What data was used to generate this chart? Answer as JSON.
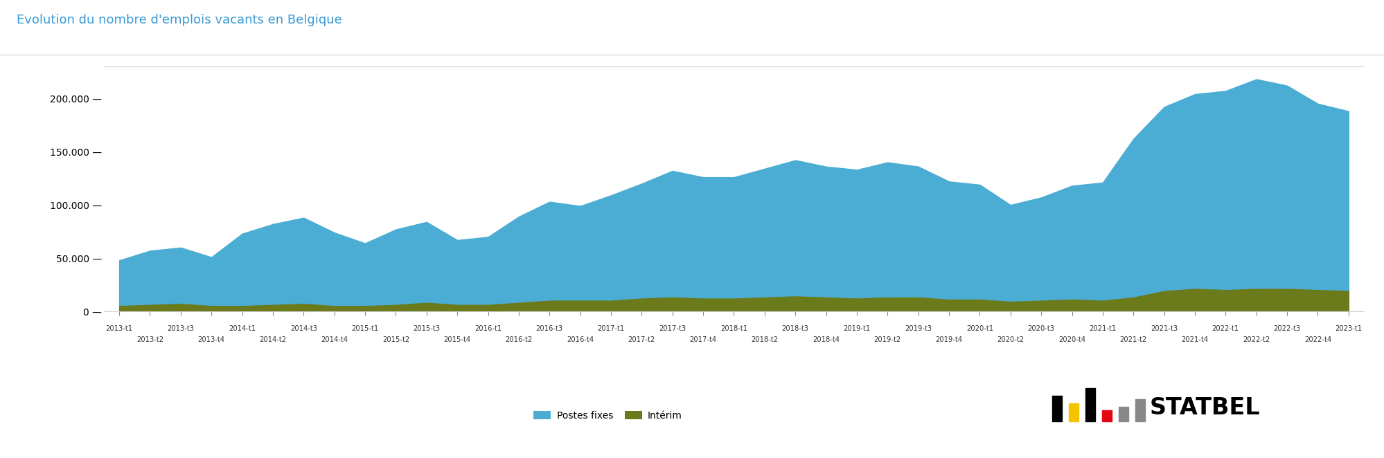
{
  "title": "Evolution du nombre d'emplois vacants en Belgique",
  "title_color": "#3a9ad4",
  "legend_labels": [
    "Postes fixes",
    "Intérim"
  ],
  "postes_fixes_color": "#4badd4",
  "interim_color": "#6b7a1a",
  "background_color": "#ffffff",
  "plot_bg_color": "#ffffff",
  "ylim": [
    0,
    230000
  ],
  "yticks": [
    0,
    50000,
    100000,
    150000,
    200000
  ],
  "quarters": [
    "2013-t1",
    "2013-t2",
    "2013-t3",
    "2013-t4",
    "2014-t1",
    "2014-t2",
    "2014-t3",
    "2014-t4",
    "2015-t1",
    "2015-t2",
    "2015-t3",
    "2015-t4",
    "2016-t1",
    "2016-t2",
    "2016-t3",
    "2016-t4",
    "2017-t1",
    "2017-t2",
    "2017-t3",
    "2017-t4",
    "2018-t1",
    "2018-t2",
    "2018-t3",
    "2018-t4",
    "2019-t1",
    "2019-t2",
    "2019-t3",
    "2019-t4",
    "2020-t1",
    "2020-t2",
    "2020-t3",
    "2020-t4",
    "2021-t1",
    "2021-t2",
    "2021-t3",
    "2021-t4",
    "2022-t1",
    "2022-t2",
    "2022-t3",
    "2022-t4",
    "2023-t1"
  ],
  "postes_fixes": [
    42000,
    50000,
    52000,
    45000,
    67000,
    75000,
    80000,
    68000,
    58000,
    70000,
    75000,
    60000,
    63000,
    80000,
    92000,
    88000,
    98000,
    107000,
    118000,
    113000,
    113000,
    120000,
    127000,
    122000,
    120000,
    126000,
    122000,
    110000,
    107000,
    90000,
    96000,
    106000,
    110000,
    148000,
    172000,
    182000,
    186000,
    196000,
    190000,
    174000,
    168000
  ],
  "interim": [
    6000,
    7000,
    8000,
    6000,
    6000,
    7000,
    8000,
    6000,
    6000,
    7000,
    9000,
    7000,
    7000,
    9000,
    11000,
    11000,
    11000,
    13000,
    14000,
    13000,
    13000,
    14000,
    15000,
    14000,
    13000,
    14000,
    14000,
    12000,
    12000,
    10000,
    11000,
    12000,
    11000,
    14000,
    20000,
    22000,
    21000,
    22000,
    22000,
    21000,
    20000
  ],
  "border_color": "#d0d0d0",
  "tick_color": "#333333",
  "grid_color": "#e8e8e8"
}
